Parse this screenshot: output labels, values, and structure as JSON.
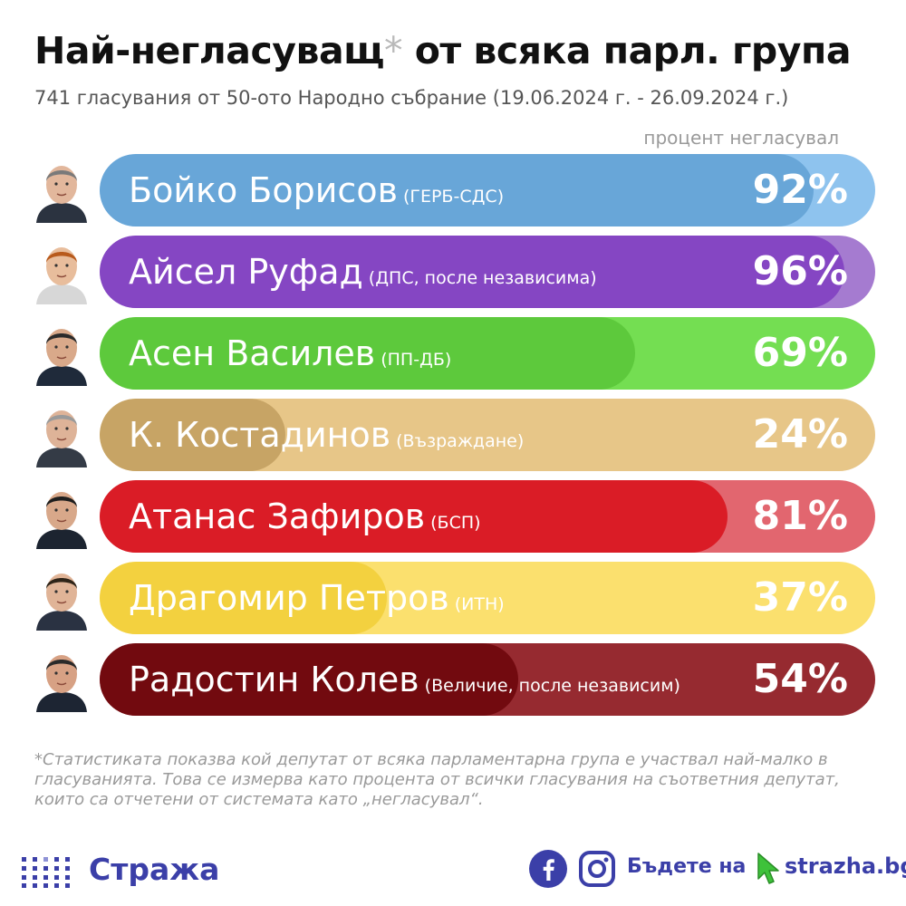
{
  "header": {
    "title": "Най-негласуващ",
    "title_star": "*",
    "title_rest": " от всяка парл. група",
    "subtitle": "741 гласувания от 50-ото Народно събрание (19.06.2024 г. - 26.09.2024 г.)",
    "column_label": "процент негласувал"
  },
  "chart_data": {
    "type": "bar",
    "orientation": "horizontal",
    "xlim": [
      0,
      100
    ],
    "categories": [
      "Бойко Борисов",
      "Айсел Руфад",
      "Асен Василев",
      "К. Костадинов",
      "Атанас Зафиров",
      "Драгомир Петров",
      "Радостин Колев"
    ],
    "parties": [
      "(ГЕРБ-СДС)",
      "(ДПС, после независима)",
      "(ПП-ДБ)",
      "(Възраждане)",
      "(БСП)",
      "(ИТН)",
      "(Величие, после независим)"
    ],
    "values": [
      92,
      96,
      69,
      24,
      81,
      37,
      54
    ],
    "labels": [
      "92%",
      "96%",
      "69%",
      "24%",
      "81%",
      "37%",
      "54%"
    ],
    "colors": [
      "#68a6d8",
      "#8546c3",
      "#5dc93c",
      "#c7a465",
      "#da1c26",
      "#f3d13f",
      "#720a0f"
    ],
    "track_colors": [
      "#8ec3ee",
      "#a57bd0",
      "#74de52",
      "#e7c688",
      "#e2666f",
      "#fbe06e",
      "#962a30"
    ]
  },
  "footnote": "*Статистиката показва кой депутат от всяка парламентарна група е участвал най-малко в гласуванията. Това се измерва като процента от всички гласувания на съответния депутат, които са отчетени от системата като „негласувал“.",
  "footer": {
    "brand": "Стража",
    "cta": "Бъдете на",
    "site": "strazha.bg",
    "brand_color": "#3b3fa8",
    "icons": [
      "facebook-icon",
      "instagram-icon",
      "cursor-icon"
    ]
  }
}
